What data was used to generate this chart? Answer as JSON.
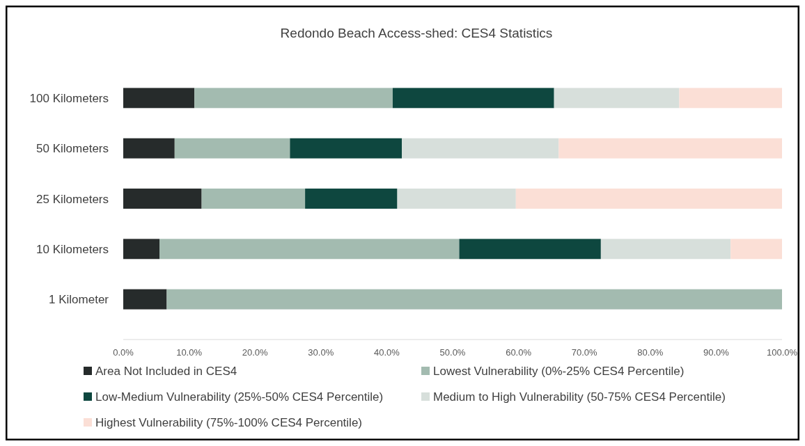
{
  "chart_data": {
    "type": "bar",
    "title": "Redondo Beach Access-shed: CES4 Statistics",
    "orientation": "horizontal",
    "stacked": true,
    "categories": [
      "100 Kilometers",
      "50 Kilometers",
      "25 Kilometers",
      "10 Kilometers",
      "1 Kilometer"
    ],
    "series": [
      {
        "name": "Area Not Included in CES4",
        "color": "#262b2b",
        "values": [
          10.8,
          7.8,
          11.9,
          5.5,
          6.6
        ]
      },
      {
        "name": "Lowest Vulnerability (0%-25% CES4 Percentile)",
        "color": "#a3bbb0",
        "values": [
          30.1,
          17.5,
          15.7,
          45.5,
          93.4
        ]
      },
      {
        "name": "Low-Medium Vulnerability (25%-50% CES4 Percentile)",
        "color": "#0e473f",
        "values": [
          24.5,
          17.0,
          14.0,
          21.5,
          0
        ]
      },
      {
        "name": "Medium to High Vulnerability (50-75% CES4 Percentile)",
        "color": "#d7dfdb",
        "values": [
          19.0,
          23.8,
          18.0,
          19.7,
          0
        ]
      },
      {
        "name": "Highest Vulnerability (75%-100% CES4 Percentile)",
        "color": "#fbdfd6",
        "values": [
          15.6,
          33.9,
          40.4,
          7.8,
          0
        ]
      }
    ],
    "xlim": [
      0,
      100
    ],
    "xticks": [
      {
        "value": 0,
        "label": "0.0%"
      },
      {
        "value": 10,
        "label": "10.0%"
      },
      {
        "value": 20,
        "label": "20.0%"
      },
      {
        "value": 30,
        "label": "30.0%"
      },
      {
        "value": 40,
        "label": "40.0%"
      },
      {
        "value": 50,
        "label": "50.0%"
      },
      {
        "value": 60,
        "label": "60.0%"
      },
      {
        "value": 70,
        "label": "70.0%"
      },
      {
        "value": 80,
        "label": "80.0%"
      },
      {
        "value": 90,
        "label": "90.0%"
      },
      {
        "value": 100,
        "label": "100.0%"
      }
    ],
    "grid": false,
    "legend": "bottom"
  }
}
